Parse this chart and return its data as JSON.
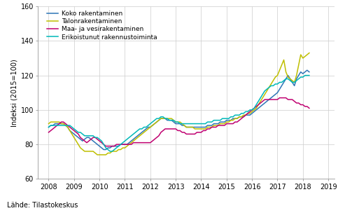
{
  "ylabel": "Indeksi (2015=100)",
  "source": "Lähde: Tilastokeskus",
  "ylim": [
    60,
    160
  ],
  "yticks": [
    60,
    80,
    100,
    120,
    140,
    160
  ],
  "xlim": [
    2007.58,
    2019.25
  ],
  "xticks": [
    2008,
    2009,
    2010,
    2011,
    2012,
    2013,
    2014,
    2015,
    2016,
    2017,
    2018,
    2019
  ],
  "legend_labels": [
    "Koko rakentaminen",
    "Talonrakentaminen",
    "Maa- ja vesirakentaminen",
    "Erikoistunut rakennustoiminta"
  ],
  "colors": [
    "#2e75b6",
    "#bfbf00",
    "#c00070",
    "#00b8b8"
  ],
  "line_width": 1.1,
  "koko": [
    90,
    91,
    91,
    92,
    92,
    92,
    92,
    92,
    91,
    90,
    88,
    87,
    86,
    85,
    84,
    83,
    82,
    83,
    84,
    84,
    83,
    82,
    81,
    80,
    79,
    78,
    77,
    77,
    78,
    78,
    79,
    79,
    79,
    79,
    80,
    80,
    80,
    80,
    81,
    82,
    83,
    84,
    85,
    86,
    87,
    88,
    89,
    90,
    90,
    91,
    92,
    93,
    94,
    95,
    95,
    95,
    94,
    94,
    94,
    93,
    92,
    92,
    92,
    91,
    91,
    90,
    90,
    90,
    90,
    90,
    90,
    90,
    90,
    90,
    90,
    91,
    91,
    91,
    92,
    92,
    92,
    93,
    93,
    93,
    94,
    94,
    94,
    95,
    95,
    95,
    96,
    96,
    96,
    97,
    97,
    97,
    98,
    99,
    100,
    101,
    102,
    103,
    104,
    105,
    106,
    107,
    108,
    109,
    110,
    112,
    114,
    116,
    118,
    120,
    118,
    116,
    114,
    118,
    120,
    122,
    121,
    122,
    123,
    122
  ],
  "talonrak": [
    92,
    93,
    93,
    93,
    93,
    93,
    92,
    92,
    91,
    90,
    88,
    86,
    84,
    82,
    80,
    78,
    77,
    76,
    76,
    76,
    76,
    76,
    75,
    74,
    74,
    74,
    74,
    74,
    75,
    75,
    76,
    76,
    76,
    77,
    77,
    78,
    78,
    79,
    80,
    81,
    82,
    83,
    84,
    85,
    86,
    87,
    88,
    89,
    90,
    91,
    92,
    93,
    94,
    95,
    95,
    95,
    95,
    95,
    95,
    94,
    93,
    93,
    93,
    92,
    91,
    90,
    90,
    90,
    90,
    89,
    89,
    89,
    89,
    89,
    89,
    90,
    90,
    90,
    91,
    91,
    91,
    92,
    92,
    92,
    93,
    93,
    94,
    94,
    95,
    95,
    96,
    96,
    97,
    97,
    98,
    98,
    99,
    100,
    101,
    103,
    105,
    107,
    109,
    111,
    113,
    115,
    117,
    119,
    120,
    123,
    126,
    129,
    122,
    119,
    118,
    117,
    116,
    120,
    126,
    132,
    130,
    131,
    132,
    133
  ],
  "maavesi": [
    87,
    88,
    89,
    90,
    91,
    92,
    93,
    93,
    92,
    91,
    90,
    89,
    88,
    87,
    86,
    84,
    83,
    82,
    81,
    82,
    83,
    84,
    84,
    83,
    82,
    81,
    80,
    79,
    79,
    79,
    79,
    79,
    80,
    80,
    80,
    80,
    80,
    80,
    80,
    80,
    81,
    81,
    81,
    81,
    81,
    81,
    81,
    81,
    81,
    82,
    83,
    84,
    85,
    87,
    88,
    89,
    89,
    89,
    89,
    89,
    89,
    88,
    88,
    87,
    87,
    86,
    86,
    86,
    86,
    86,
    87,
    87,
    87,
    88,
    88,
    89,
    89,
    90,
    90,
    90,
    91,
    91,
    91,
    91,
    92,
    92,
    92,
    92,
    93,
    93,
    94,
    95,
    96,
    97,
    98,
    99,
    100,
    101,
    102,
    103,
    104,
    105,
    106,
    106,
    106,
    106,
    106,
    106,
    106,
    107,
    107,
    107,
    107,
    106,
    106,
    106,
    105,
    104,
    104,
    103,
    103,
    102,
    102,
    101
  ],
  "erikois": [
    90,
    91,
    91,
    91,
    91,
    91,
    91,
    91,
    91,
    91,
    91,
    90,
    89,
    88,
    87,
    87,
    86,
    85,
    85,
    85,
    85,
    85,
    84,
    84,
    83,
    82,
    80,
    78,
    77,
    76,
    76,
    77,
    78,
    79,
    80,
    81,
    82,
    83,
    84,
    85,
    86,
    87,
    88,
    89,
    89,
    90,
    90,
    91,
    92,
    93,
    94,
    95,
    95,
    96,
    96,
    95,
    95,
    94,
    94,
    94,
    93,
    93,
    92,
    92,
    92,
    92,
    92,
    92,
    92,
    92,
    92,
    92,
    92,
    92,
    92,
    93,
    93,
    93,
    94,
    94,
    94,
    94,
    95,
    95,
    95,
    95,
    96,
    96,
    97,
    97,
    97,
    98,
    98,
    99,
    99,
    100,
    100,
    101,
    103,
    105,
    107,
    109,
    111,
    112,
    113,
    114,
    114,
    115,
    115,
    116,
    116,
    117,
    118,
    118,
    117,
    116,
    116,
    117,
    118,
    119,
    119,
    120,
    120,
    120
  ]
}
